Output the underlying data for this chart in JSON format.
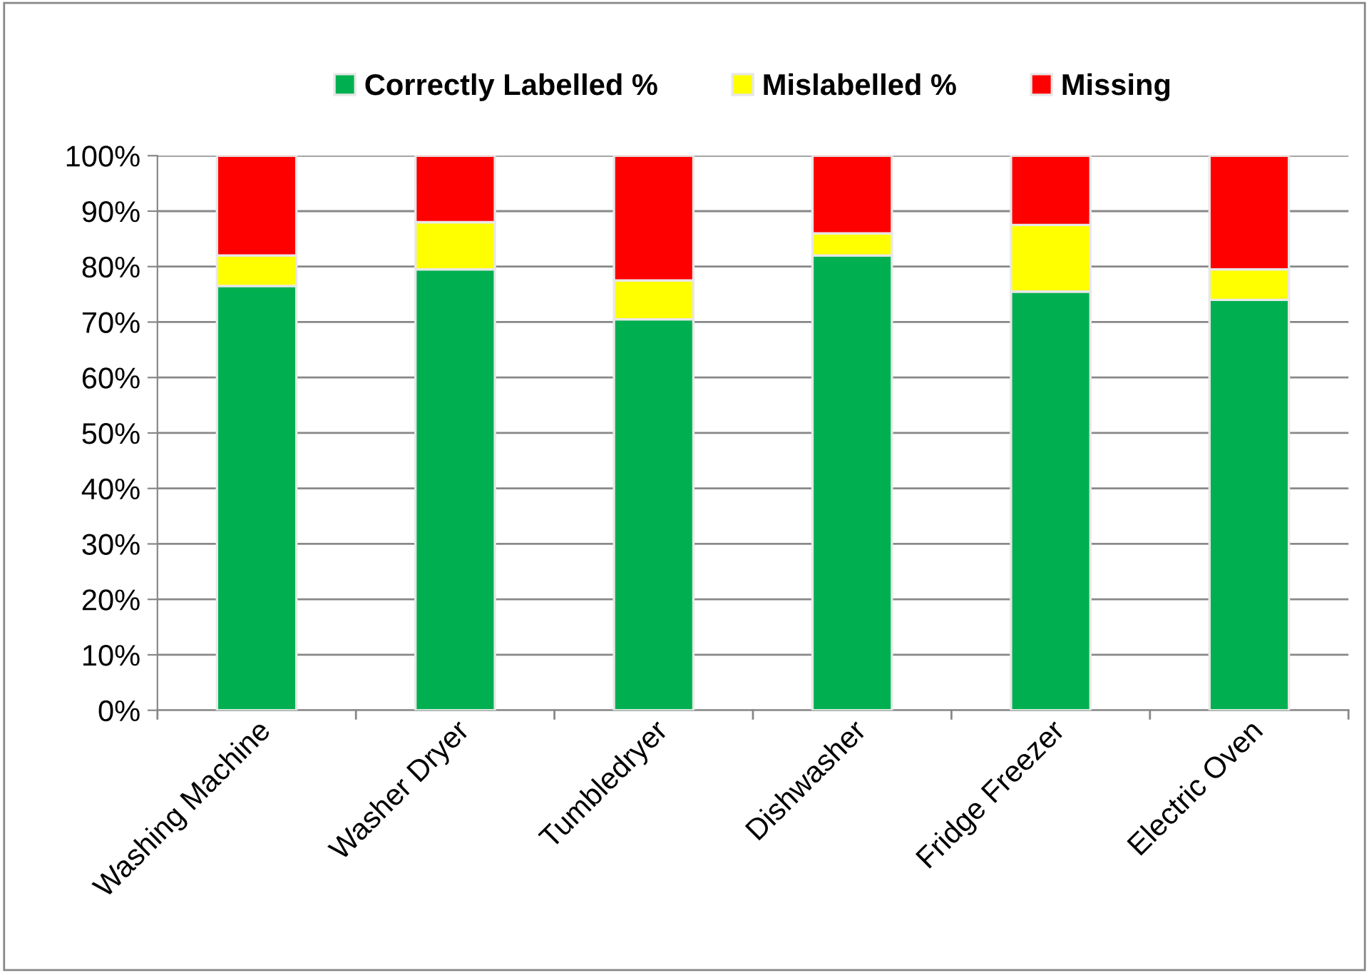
{
  "chart_data": {
    "type": "bar",
    "stacked": true,
    "categories": [
      "Washing Machine",
      "Washer Dryer",
      "Tumbledryer",
      "Dishwasher",
      "Fridge Freezer",
      "Electric Oven"
    ],
    "series": [
      {
        "name": "Correctly Labelled %",
        "color": "#00b050",
        "values": [
          76.5,
          79.5,
          70.5,
          82,
          75.5,
          74
        ]
      },
      {
        "name": "Mislabelled %",
        "color": "#ffff00",
        "values": [
          5.5,
          8.5,
          7,
          4,
          12,
          5.5
        ]
      },
      {
        "name": "Missing",
        "color": "#ff0000",
        "values": [
          18,
          12,
          22.5,
          14,
          12.5,
          20.5
        ]
      }
    ],
    "ylim": [
      0,
      100
    ],
    "yticks": [
      {
        "value": 0,
        "label": "0%"
      },
      {
        "value": 10,
        "label": "10%"
      },
      {
        "value": 20,
        "label": "20%"
      },
      {
        "value": 30,
        "label": "30%"
      },
      {
        "value": 40,
        "label": "40%"
      },
      {
        "value": 50,
        "label": "50%"
      },
      {
        "value": 60,
        "label": "60%"
      },
      {
        "value": 70,
        "label": "70%"
      },
      {
        "value": 80,
        "label": "80%"
      },
      {
        "value": 90,
        "label": "90%"
      },
      {
        "value": 100,
        "label": "100%"
      }
    ],
    "grid": "y",
    "legend": "top"
  }
}
